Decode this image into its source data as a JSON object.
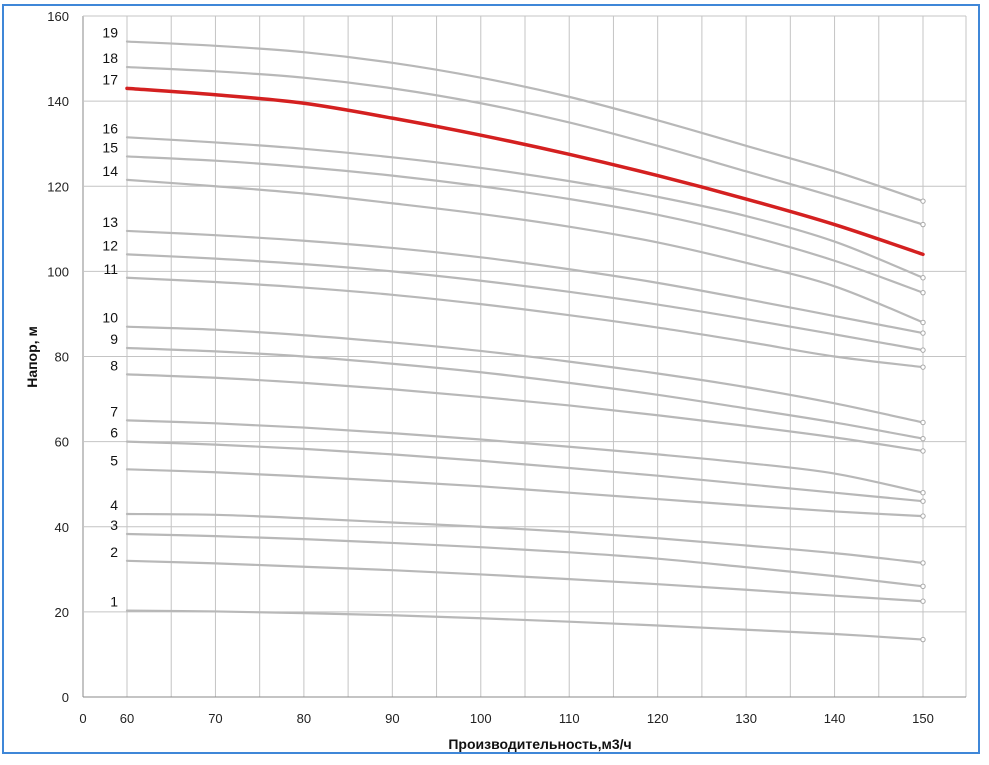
{
  "chart_data": {
    "type": "line",
    "xlabel": "Производительность,м3/ч",
    "ylabel": "Напор, м",
    "xlim": [
      0,
      150
    ],
    "ylim": [
      0,
      160
    ],
    "x_ticks": [
      "0",
      "60",
      "70",
      "80",
      "90",
      "100",
      "110",
      "120",
      "130",
      "140",
      "150"
    ],
    "y_ticks": [
      "0",
      "20",
      "40",
      "60",
      "80",
      "100",
      "120",
      "140",
      "160"
    ],
    "grid": true,
    "x": [
      60,
      70,
      80,
      90,
      100,
      110,
      120,
      130,
      140,
      150
    ],
    "highlight_color": "#d42020",
    "curve_color": "#b8b8b8",
    "series": [
      {
        "name": "1",
        "values": [
          20.3,
          20.1,
          19.7,
          19.2,
          18.5,
          17.7,
          16.8,
          15.8,
          14.8,
          13.5
        ]
      },
      {
        "name": "2",
        "values": [
          32.0,
          31.4,
          30.6,
          29.8,
          28.8,
          27.7,
          26.5,
          25.2,
          23.8,
          22.5
        ]
      },
      {
        "name": "3",
        "values": [
          38.3,
          37.8,
          37.1,
          36.2,
          35.2,
          34.0,
          32.5,
          30.5,
          28.4,
          26.0
        ]
      },
      {
        "name": "4",
        "values": [
          43.0,
          42.8,
          42.0,
          41.0,
          40.0,
          38.8,
          37.3,
          35.6,
          33.8,
          31.5
        ]
      },
      {
        "name": "5",
        "values": [
          53.5,
          52.8,
          51.8,
          50.7,
          49.5,
          48.0,
          46.5,
          45.0,
          43.6,
          42.5
        ]
      },
      {
        "name": "6",
        "values": [
          60.0,
          59.3,
          58.3,
          57.0,
          55.5,
          53.8,
          52.0,
          50.0,
          48.0,
          46.0
        ]
      },
      {
        "name": "7",
        "values": [
          65.0,
          64.3,
          63.3,
          62.0,
          60.5,
          58.8,
          57.0,
          55.0,
          52.5,
          48.0
        ]
      },
      {
        "name": "8",
        "values": [
          75.8,
          75.0,
          73.8,
          72.3,
          70.5,
          68.5,
          66.2,
          63.7,
          61.0,
          57.8
        ]
      },
      {
        "name": "9",
        "values": [
          82.0,
          81.2,
          80.0,
          78.3,
          76.3,
          73.8,
          71.0,
          67.8,
          64.5,
          60.7
        ]
      },
      {
        "name": "10",
        "values": [
          87.0,
          86.3,
          85.0,
          83.3,
          81.3,
          78.8,
          76.0,
          72.8,
          69.0,
          64.5
        ]
      },
      {
        "name": "11",
        "values": [
          98.5,
          97.5,
          96.2,
          94.5,
          92.3,
          89.7,
          86.8,
          83.5,
          80.0,
          77.5
        ]
      },
      {
        "name": "12",
        "values": [
          104.0,
          103.0,
          101.7,
          100.0,
          97.8,
          95.2,
          92.2,
          88.8,
          85.2,
          81.5
        ]
      },
      {
        "name": "13",
        "values": [
          109.5,
          108.5,
          107.2,
          105.5,
          103.3,
          100.5,
          97.3,
          93.5,
          89.5,
          85.5
        ]
      },
      {
        "name": "14",
        "values": [
          121.5,
          120.0,
          118.3,
          116.0,
          113.5,
          110.5,
          106.8,
          102.0,
          96.5,
          88.0
        ]
      },
      {
        "name": "15",
        "values": [
          127.0,
          126.0,
          124.5,
          122.5,
          120.0,
          117.0,
          113.3,
          108.5,
          102.5,
          95.0
        ]
      },
      {
        "name": "16",
        "values": [
          131.5,
          130.3,
          128.8,
          126.8,
          124.3,
          121.2,
          117.5,
          113.0,
          107.0,
          98.5
        ]
      },
      {
        "name": "17",
        "values": [
          143.0,
          141.5,
          139.5,
          136.0,
          132.0,
          127.5,
          122.5,
          117.0,
          111.0,
          104.0
        ]
      },
      {
        "name": "18",
        "values": [
          148.0,
          147.0,
          145.5,
          143.0,
          139.5,
          135.0,
          129.5,
          123.5,
          117.5,
          111.0
        ]
      },
      {
        "name": "19",
        "values": [
          154.0,
          153.0,
          151.5,
          149.0,
          145.5,
          141.0,
          135.5,
          129.5,
          123.5,
          116.5
        ]
      }
    ],
    "highlighted_series": "17"
  }
}
